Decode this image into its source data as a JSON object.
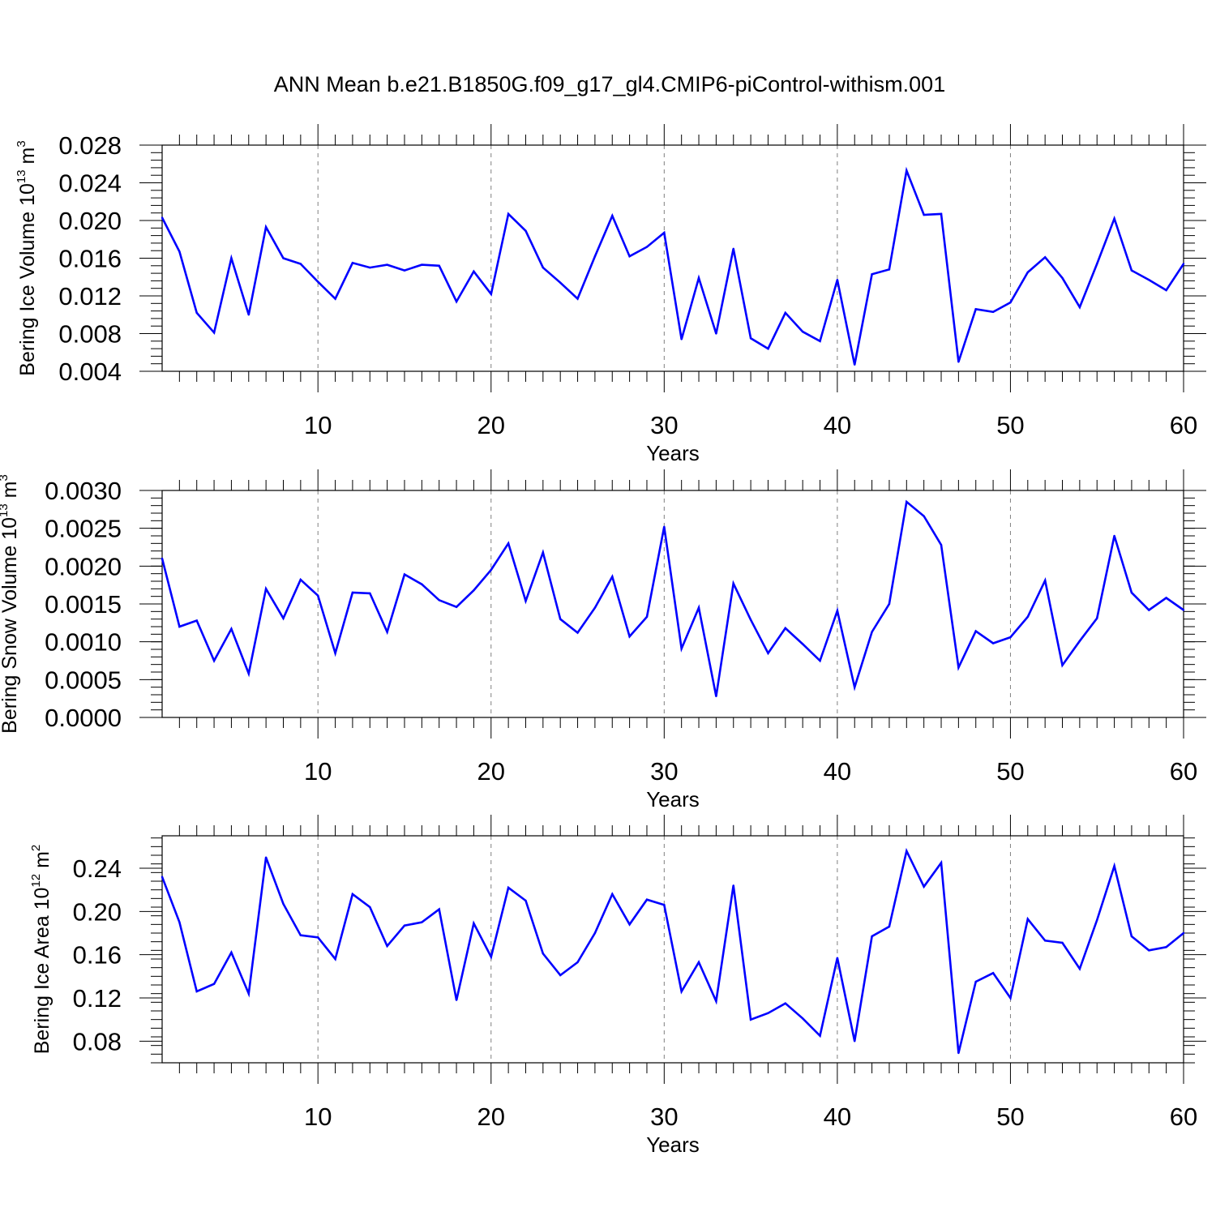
{
  "title": "ANN Mean b.e21.B1850G.f09_g17_gl4.CMIP6-piControl-withism.001",
  "colors": {
    "line": "#0000ff",
    "axis": "#000000",
    "grid": "#808080"
  },
  "chart_data": [
    {
      "type": "line",
      "name": "bering-ice-volume",
      "ylabel_main": "Bering Ice Volume 10",
      "ylabel_exp": "13",
      "ylabel_unit": " m",
      "ylabel_unit_exp": "3",
      "xlabel": "Years",
      "xlim": [
        1,
        60
      ],
      "ylim": [
        0.004,
        0.028
      ],
      "x_ticks": [
        10,
        20,
        30,
        40,
        50,
        60
      ],
      "x_tick_labels": [
        "10",
        "20",
        "30",
        "40",
        "50",
        "60"
      ],
      "y_ticks": [
        0.004,
        0.008,
        0.012,
        0.016,
        0.02,
        0.024,
        0.028
      ],
      "y_tick_labels": [
        "0.004",
        "0.008",
        "0.012",
        "0.016",
        "0.020",
        "0.024",
        "0.028"
      ],
      "y_minor_step": 0.0008,
      "grid_x": [
        10,
        20,
        30,
        40,
        50
      ],
      "x": [
        1,
        2,
        3,
        4,
        5,
        6,
        7,
        8,
        9,
        10,
        11,
        12,
        13,
        14,
        15,
        16,
        17,
        18,
        19,
        20,
        21,
        22,
        23,
        24,
        25,
        26,
        27,
        28,
        29,
        30,
        31,
        32,
        33,
        34,
        35,
        36,
        37,
        38,
        39,
        40,
        41,
        42,
        43,
        44,
        45,
        46,
        47,
        48,
        49,
        50,
        51,
        52,
        53,
        54,
        55,
        56,
        57,
        58,
        59,
        60
      ],
      "values": [
        0.0203,
        0.0167,
        0.0102,
        0.0081,
        0.016,
        0.01,
        0.0193,
        0.016,
        0.0154,
        0.0135,
        0.0117,
        0.0155,
        0.015,
        0.0153,
        0.0147,
        0.0153,
        0.0152,
        0.0114,
        0.0146,
        0.0122,
        0.0207,
        0.0189,
        0.015,
        0.0134,
        0.0117,
        0.0162,
        0.0205,
        0.0162,
        0.0172,
        0.0187,
        0.0074,
        0.0139,
        0.008,
        0.017,
        0.0075,
        0.0064,
        0.0102,
        0.0082,
        0.0072,
        0.0137,
        0.0047,
        0.0143,
        0.0148,
        0.0253,
        0.0206,
        0.0207,
        0.005,
        0.0106,
        0.0103,
        0.0113,
        0.0145,
        0.0161,
        0.0139,
        0.0108,
        0.0154,
        0.0202,
        0.0147,
        0.0137,
        0.0126,
        0.0154
      ]
    },
    {
      "type": "line",
      "name": "bering-snow-volume",
      "ylabel_main": "Bering Snow Volume 10",
      "ylabel_exp": "13",
      "ylabel_unit": " m",
      "ylabel_unit_exp": "3",
      "xlabel": "Years",
      "xlim": [
        1,
        60
      ],
      "ylim": [
        0.0,
        0.003
      ],
      "x_ticks": [
        10,
        20,
        30,
        40,
        50,
        60
      ],
      "x_tick_labels": [
        "10",
        "20",
        "30",
        "40",
        "50",
        "60"
      ],
      "y_ticks": [
        0.0,
        0.0005,
        0.001,
        0.0015,
        0.002,
        0.0025,
        0.003
      ],
      "y_tick_labels": [
        "0.0000",
        "0.0005",
        "0.0010",
        "0.0015",
        "0.0020",
        "0.0025",
        "0.0030"
      ],
      "y_minor_step": 0.0001,
      "grid_x": [
        10,
        20,
        30,
        40,
        50
      ],
      "x": [
        1,
        2,
        3,
        4,
        5,
        6,
        7,
        8,
        9,
        10,
        11,
        12,
        13,
        14,
        15,
        16,
        17,
        18,
        19,
        20,
        21,
        22,
        23,
        24,
        25,
        26,
        27,
        28,
        29,
        30,
        31,
        32,
        33,
        34,
        35,
        36,
        37,
        38,
        39,
        40,
        41,
        42,
        43,
        44,
        45,
        46,
        47,
        48,
        49,
        50,
        51,
        52,
        53,
        54,
        55,
        56,
        57,
        58,
        59,
        60
      ],
      "values": [
        0.0021,
        0.0012,
        0.00128,
        0.00075,
        0.00117,
        0.00058,
        0.0017,
        0.00131,
        0.00182,
        0.00161,
        0.00085,
        0.00165,
        0.00164,
        0.00113,
        0.00189,
        0.00176,
        0.00155,
        0.00146,
        0.00168,
        0.00195,
        0.0023,
        0.00154,
        0.00218,
        0.0013,
        0.00112,
        0.00145,
        0.00186,
        0.00107,
        0.00133,
        0.00252,
        0.00091,
        0.00145,
        0.00028,
        0.00177,
        0.00129,
        0.00085,
        0.00118,
        0.00097,
        0.00075,
        0.00141,
        0.0004,
        0.00113,
        0.0015,
        0.00285,
        0.00266,
        0.00228,
        0.00066,
        0.00114,
        0.00098,
        0.00106,
        0.00133,
        0.00181,
        0.00069,
        0.00101,
        0.00131,
        0.0024,
        0.00165,
        0.00142,
        0.00158,
        0.00142
      ]
    },
    {
      "type": "line",
      "name": "bering-ice-area",
      "ylabel_main": "Bering Ice Area 10",
      "ylabel_exp": "12",
      "ylabel_unit": " m",
      "ylabel_unit_exp": "2",
      "xlabel": "Years",
      "xlim": [
        1,
        60
      ],
      "ylim": [
        0.06,
        0.27
      ],
      "x_ticks": [
        10,
        20,
        30,
        40,
        50,
        60
      ],
      "x_tick_labels": [
        "10",
        "20",
        "30",
        "40",
        "50",
        "60"
      ],
      "y_ticks": [
        0.08,
        0.12,
        0.16,
        0.2,
        0.24
      ],
      "y_tick_labels": [
        "0.08",
        "0.12",
        "0.16",
        "0.20",
        "0.24"
      ],
      "y_minor_step": 0.008,
      "grid_x": [
        10,
        20,
        30,
        40,
        50
      ],
      "x": [
        1,
        2,
        3,
        4,
        5,
        6,
        7,
        8,
        9,
        10,
        11,
        12,
        13,
        14,
        15,
        16,
        17,
        18,
        19,
        20,
        21,
        22,
        23,
        24,
        25,
        26,
        27,
        28,
        29,
        30,
        31,
        32,
        33,
        34,
        35,
        36,
        37,
        38,
        39,
        40,
        41,
        42,
        43,
        44,
        45,
        46,
        47,
        48,
        49,
        50,
        51,
        52,
        53,
        54,
        55,
        56,
        57,
        58,
        59,
        60
      ],
      "values": [
        0.232,
        0.19,
        0.126,
        0.133,
        0.162,
        0.124,
        0.25,
        0.207,
        0.178,
        0.176,
        0.156,
        0.216,
        0.204,
        0.168,
        0.187,
        0.19,
        0.202,
        0.118,
        0.189,
        0.158,
        0.222,
        0.21,
        0.161,
        0.141,
        0.153,
        0.18,
        0.216,
        0.188,
        0.211,
        0.206,
        0.126,
        0.153,
        0.117,
        0.224,
        0.1,
        0.106,
        0.115,
        0.101,
        0.085,
        0.157,
        0.08,
        0.177,
        0.186,
        0.256,
        0.223,
        0.245,
        0.069,
        0.135,
        0.143,
        0.12,
        0.193,
        0.173,
        0.171,
        0.147,
        0.192,
        0.242,
        0.177,
        0.164,
        0.167,
        0.18
      ]
    }
  ]
}
